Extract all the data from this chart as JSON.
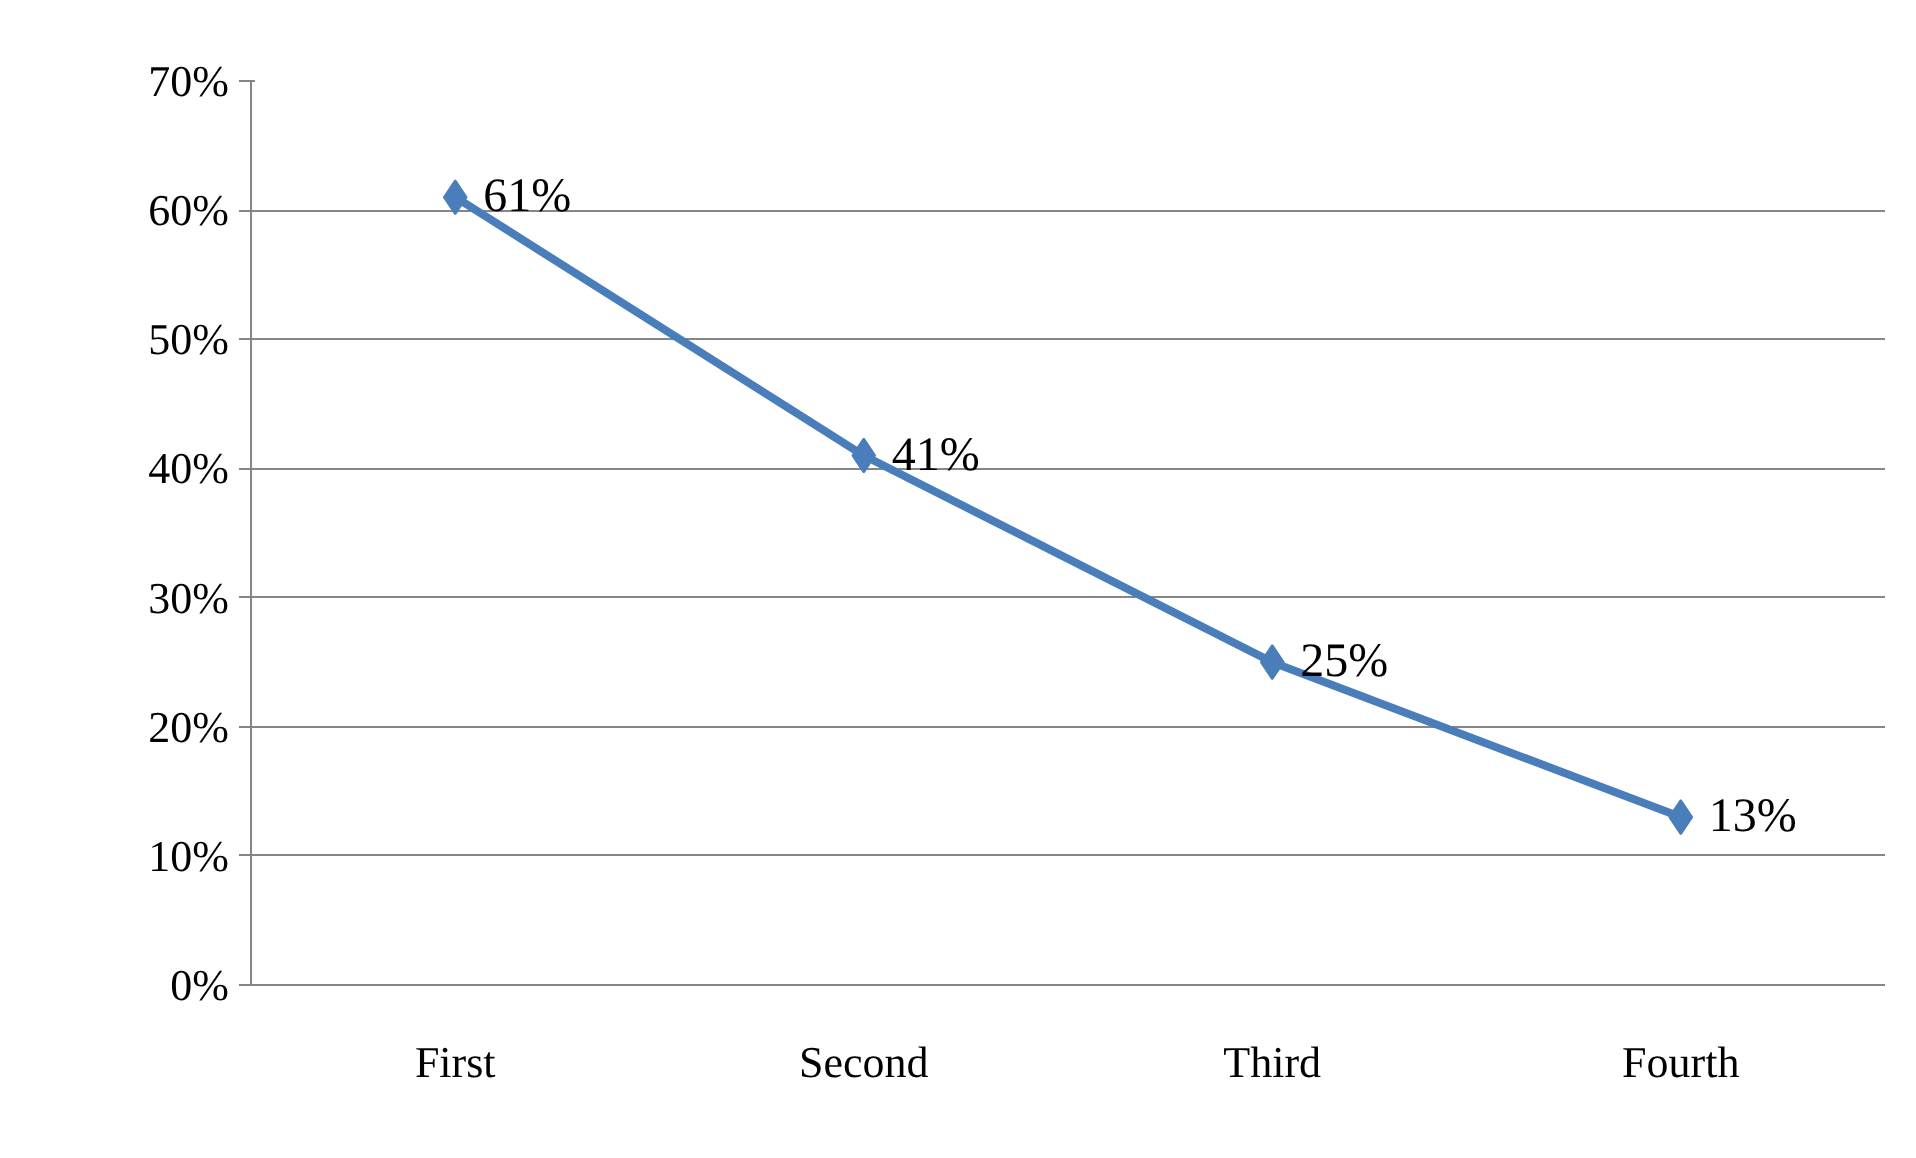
{
  "chart_data": {
    "type": "line",
    "categories": [
      "First",
      "Second",
      "Third",
      "Fourth"
    ],
    "series": [
      {
        "color": "#4a7ebb",
        "values": [
          61,
          41,
          25,
          13
        ],
        "value_labels": [
          "61%",
          "41%",
          "25%",
          "13%"
        ]
      }
    ],
    "ylim": [
      0,
      70
    ],
    "yticks": [
      {
        "value": 0,
        "label": "0%"
      },
      {
        "value": 10,
        "label": "10%"
      },
      {
        "value": 20,
        "label": "20%"
      },
      {
        "value": 30,
        "label": "30%"
      },
      {
        "value": 40,
        "label": "40%"
      },
      {
        "value": 50,
        "label": "50%"
      },
      {
        "value": 60,
        "label": "60%"
      },
      {
        "value": 70,
        "label": "70%"
      }
    ],
    "grid": "y",
    "marker": "diamond",
    "line_style": "solid"
  }
}
